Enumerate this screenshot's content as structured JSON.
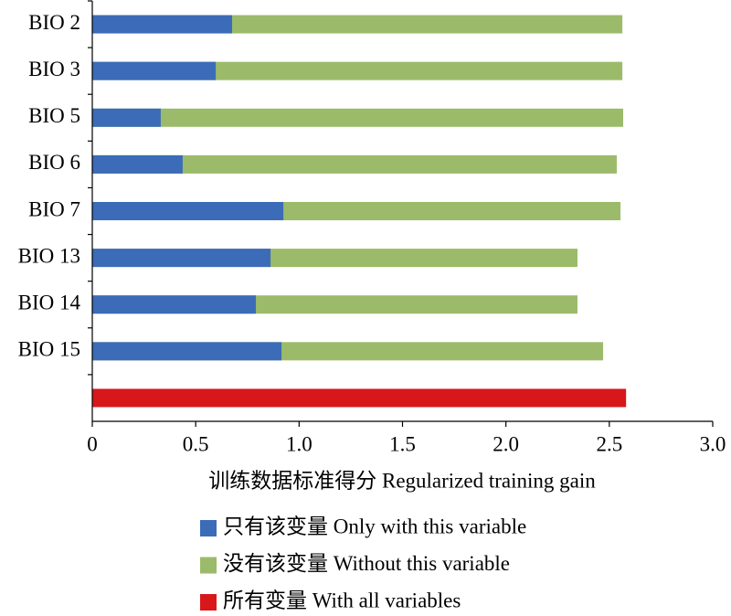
{
  "chart_data": {
    "type": "bar",
    "orientation": "horizontal",
    "x_label": "训练数据标准得分 Regularized training gain",
    "categories": [
      "BIO 2",
      "BIO 3",
      "BIO 5",
      "BIO 6",
      "BIO 7",
      "BIO 13",
      "BIO 14",
      "BIO 15",
      null
    ],
    "series": [
      {
        "name": "没有该变量 Without this variable",
        "color": "#9bbb6a",
        "values": [
          2.563,
          2.563,
          2.567,
          2.536,
          2.554,
          2.346,
          2.346,
          2.47,
          null
        ]
      },
      {
        "name": "只有该变量 Only with this variable",
        "color": "#3c6cb8",
        "values": [
          0.676,
          0.597,
          0.331,
          0.437,
          0.924,
          0.862,
          0.791,
          0.915,
          null
        ]
      },
      {
        "name": "所有变量 With all variables",
        "color": "#d8171b",
        "values": [
          null,
          null,
          null,
          null,
          null,
          null,
          null,
          null,
          2.581
        ]
      }
    ],
    "xlim": [
      0,
      3.0
    ],
    "xticks": [
      0,
      0.5,
      {
        "value": 1.0,
        "label": "1.0"
      },
      1.5,
      {
        "value": 2.0,
        "label": "2.0"
      },
      2.5,
      {
        "value": 3.0,
        "label": "3.0"
      }
    ],
    "legend_order": [
      1,
      0,
      2
    ]
  }
}
